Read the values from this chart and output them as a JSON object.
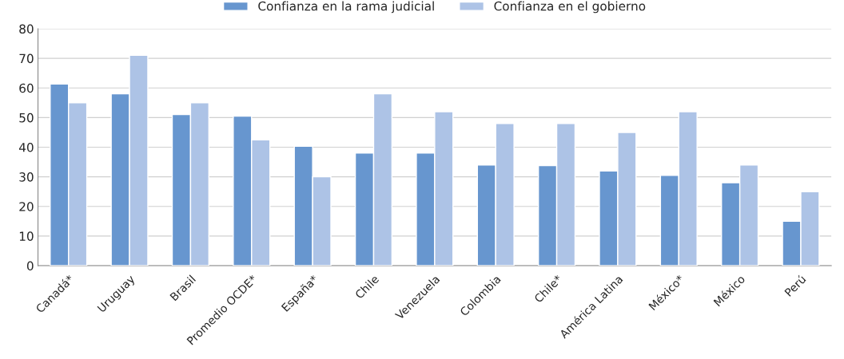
{
  "chart_data": {
    "type": "bar",
    "categories": [
      "Canadá*",
      "Uruguay",
      "Brasil",
      "Promedio OCDE*",
      "España*",
      "Chile",
      "Venezuela",
      "Colombia",
      "Chile*",
      "América Latina",
      "México*",
      "México",
      "Perú"
    ],
    "series": [
      {
        "name": "Confianza en la rama judicial",
        "color": "#6796cf",
        "values": [
          61.3,
          58,
          51,
          50.5,
          40.3,
          38,
          38,
          34,
          33.8,
          32,
          30.5,
          28,
          15
        ]
      },
      {
        "name": "Confianza en el gobierno",
        "color": "#adc3e6",
        "values": [
          55,
          71,
          55,
          42.5,
          30,
          58,
          52,
          48,
          48,
          45,
          52,
          34,
          25
        ]
      }
    ],
    "ylim": [
      0,
      80
    ],
    "yticks": [
      0,
      10,
      20,
      30,
      40,
      50,
      60,
      70,
      80
    ],
    "grid": "y",
    "legend": "top"
  }
}
